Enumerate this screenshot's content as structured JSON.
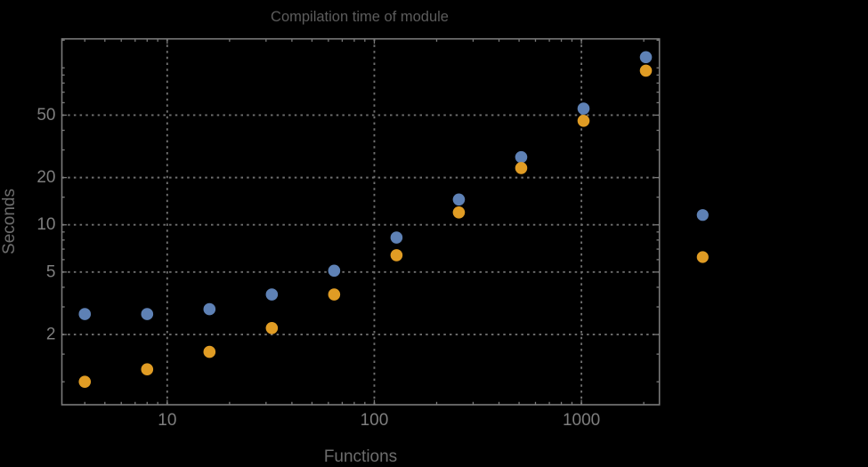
{
  "title": "Compilation time of module",
  "colors": {
    "background": "#000000",
    "frame": "#7a7a7a",
    "grid": "#6f6f6f",
    "title_text": "#5c5c5c",
    "tick_label_text": "#7e7e7e",
    "axis_label_text": "#6d6d6d",
    "series1": "#5e81b5",
    "series2": "#e09c24"
  },
  "chart_data": {
    "type": "scatter",
    "title": "Compilation time of module",
    "xlabel": "Functions",
    "ylabel": "Seconds",
    "x_scale": "log",
    "y_scale": "log",
    "xlim": [
      3.1,
      2380
    ],
    "ylim": [
      0.714,
      153
    ],
    "x_ticks": [
      10,
      100,
      1000
    ],
    "x_tick_labels": [
      "10",
      "100",
      "1000"
    ],
    "x_minor_ticks": [
      4,
      5,
      6,
      7,
      8,
      9,
      20,
      30,
      40,
      50,
      60,
      70,
      80,
      90,
      200,
      300,
      400,
      500,
      600,
      700,
      800,
      900,
      2000
    ],
    "y_ticks": [
      2,
      5,
      10,
      20,
      50
    ],
    "y_tick_labels": [
      "2",
      "5",
      "10",
      "20",
      "50"
    ],
    "y_minor_ticks": [
      1,
      1.5,
      3,
      4,
      6,
      7,
      8,
      9,
      15,
      30,
      40,
      60,
      70,
      80,
      90,
      100,
      150
    ],
    "grid": "dotted gridlines at labeled major ticks, frame on all four sides with inward ticks",
    "legend_position": "outside-right",
    "series": [
      {
        "name": "series-1-blue",
        "color": "#5e81b5",
        "x": [
          4,
          8,
          16,
          32,
          64,
          128,
          256,
          512,
          1024,
          2048
        ],
        "y": [
          2.7,
          2.7,
          2.9,
          3.6,
          5.1,
          8.3,
          14.5,
          27,
          55,
          117
        ]
      },
      {
        "name": "series-2-orange",
        "color": "#e09c24",
        "x": [
          4,
          8,
          16,
          32,
          64,
          128,
          256,
          512,
          1024,
          2048
        ],
        "y": [
          1.0,
          1.2,
          1.55,
          2.2,
          3.6,
          6.4,
          12,
          23,
          46,
          96
        ]
      }
    ],
    "legend": {
      "markers": [
        {
          "color": "#5e81b5",
          "label": ""
        },
        {
          "color": "#e09c24",
          "label": ""
        }
      ]
    }
  }
}
